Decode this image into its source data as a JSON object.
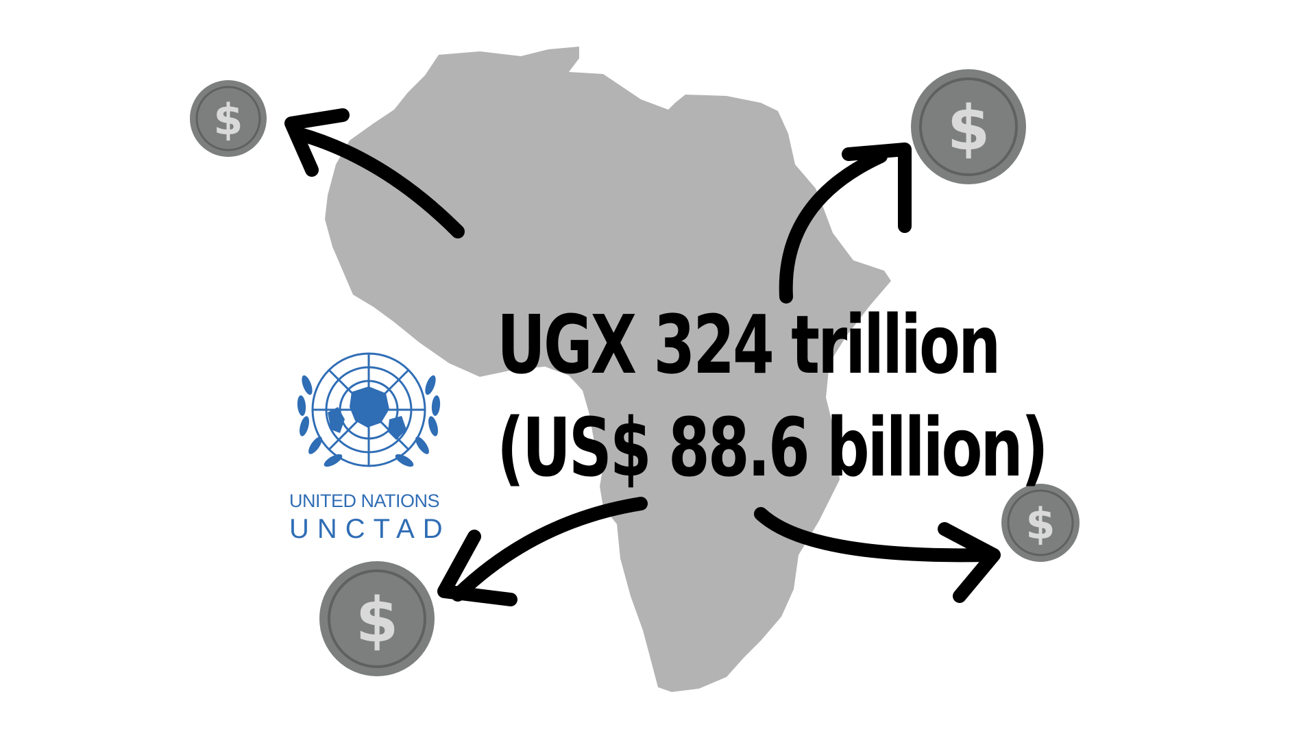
{
  "headline": {
    "line1": "UGX 324 trillion",
    "line2": "(US$ 88.6 billion)"
  },
  "logo": {
    "name": "UNITED NATIONS",
    "sub": "UNCTAD",
    "color": "#2f6db5"
  },
  "coins": [
    {
      "symbol": "$",
      "icon": "dollar-coin-icon"
    },
    {
      "symbol": "$",
      "icon": "dollar-coin-icon"
    },
    {
      "symbol": "$",
      "icon": "dollar-coin-icon"
    },
    {
      "symbol": "$",
      "icon": "dollar-coin-icon"
    }
  ],
  "colors": {
    "map": "#b3b3b3",
    "coin_fill": "#7d7f7f",
    "coin_ring": "#5f6161",
    "coin_symbol": "#d9d9d9",
    "arrow": "#000000"
  }
}
